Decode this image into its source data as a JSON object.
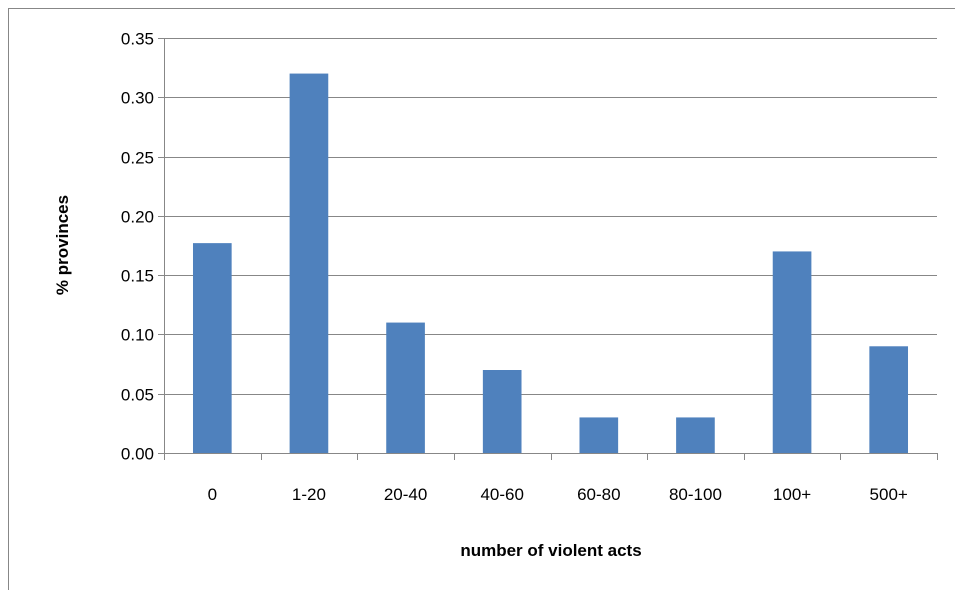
{
  "chart_data": {
    "type": "bar",
    "title": "",
    "xlabel": "number of violent acts",
    "ylabel": "% provinces",
    "categories": [
      "0",
      "1-20",
      "20-40",
      "40-60",
      "60-80",
      "80-100",
      "100+",
      "500+"
    ],
    "values": [
      0.177,
      0.32,
      0.11,
      0.07,
      0.03,
      0.03,
      0.17,
      0.09
    ],
    "ylim": [
      0,
      0.35
    ],
    "yticks": [
      "0.00",
      "0.05",
      "0.10",
      "0.15",
      "0.20",
      "0.25",
      "0.30",
      "0.35"
    ],
    "grid": true,
    "legend": "none",
    "bar_color": "#4F81BD",
    "grid_color": "#878787",
    "frame_color": "#878787"
  }
}
